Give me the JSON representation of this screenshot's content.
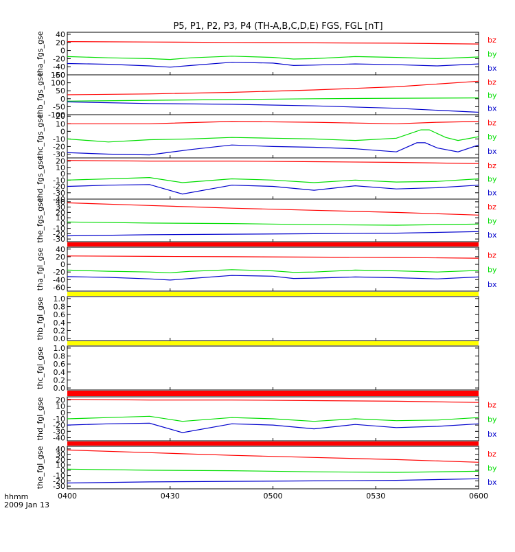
{
  "chart_data": {
    "type": "line",
    "title": "P5, P1, P2, P3, P4 (TH-A,B,C,D,E) FGS, FGL [nT]",
    "x_ticks": [
      "0400",
      "0430",
      "0500",
      "0530",
      "0600"
    ],
    "x_label_line1": "hhmm",
    "x_label_line2": "2009 Jan 13",
    "legend": {
      "bz": "bz",
      "by": "by",
      "bx": "bx"
    },
    "colors": {
      "bz": "#ff0000",
      "by": "#00dd00",
      "bx": "#0000cc",
      "bar_red": "#ff0000",
      "bar_yellow": "#ffff00"
    },
    "panels": [
      {
        "ylabel": "tha_fgs_gse",
        "ylim": [
          -60,
          45
        ],
        "yticks": [
          "40",
          "20",
          "0",
          "-20",
          "-40",
          "-60"
        ],
        "legend_shown": true,
        "series": [
          {
            "name": "bz",
            "t": [
              0,
              0.2,
              0.4,
              0.6,
              0.8,
              1
            ],
            "values": [
              22,
              21,
              20,
              19,
              18,
              16
            ]
          },
          {
            "name": "by",
            "t": [
              0,
              0.1,
              0.2,
              0.25,
              0.3,
              0.4,
              0.5,
              0.55,
              0.6,
              0.7,
              0.8,
              0.9,
              1
            ],
            "values": [
              -15,
              -18,
              -20,
              -22,
              -18,
              -14,
              -17,
              -21,
              -20,
              -15,
              -17,
              -20,
              -16
            ]
          },
          {
            "name": "bx",
            "t": [
              0,
              0.1,
              0.2,
              0.25,
              0.3,
              0.4,
              0.5,
              0.55,
              0.6,
              0.7,
              0.8,
              0.9,
              1
            ],
            "values": [
              -32,
              -34,
              -38,
              -41,
              -37,
              -29,
              -31,
              -37,
              -36,
              -33,
              -35,
              -38,
              -33
            ]
          }
        ]
      },
      {
        "ylabel": "thb_fgs_gse",
        "ylim": [
          -100,
          150
        ],
        "yticks": [
          "150",
          "100",
          "50",
          "0",
          "-50",
          "-100"
        ],
        "legend_shown": true,
        "series": [
          {
            "name": "bz",
            "t": [
              0,
              0.2,
              0.4,
              0.6,
              0.8,
              1
            ],
            "values": [
              25,
              30,
              40,
              55,
              75,
              110
            ]
          },
          {
            "name": "by",
            "t": [
              0,
              0.2,
              0.4,
              0.6,
              0.8,
              1
            ],
            "values": [
              -15,
              -10,
              -5,
              0,
              3,
              5
            ]
          },
          {
            "name": "bx",
            "t": [
              0,
              0.2,
              0.4,
              0.6,
              0.8,
              1
            ],
            "values": [
              -20,
              -30,
              -35,
              -45,
              -60,
              -85
            ]
          }
        ]
      },
      {
        "ylabel": "thc_fgs_gse",
        "ylim": [
          -35,
          22
        ],
        "yticks": [
          "20",
          "10",
          "0",
          "-10",
          "-20",
          "-30"
        ],
        "legend_shown": true,
        "series": [
          {
            "name": "bz",
            "t": [
              0,
              0.2,
              0.4,
              0.6,
              0.7,
              0.8,
              0.9,
              1
            ],
            "values": [
              10,
              10,
              13,
              12,
              11,
              10,
              12,
              13
            ]
          },
          {
            "name": "by",
            "t": [
              0,
              0.1,
              0.2,
              0.3,
              0.4,
              0.5,
              0.6,
              0.7,
              0.8,
              0.86,
              0.88,
              0.92,
              0.95,
              1
            ],
            "values": [
              -10,
              -14,
              -11,
              -10,
              -8,
              -9,
              -10,
              -12,
              -9,
              2,
              2,
              -8,
              -12,
              -7
            ]
          },
          {
            "name": "bx",
            "t": [
              0,
              0.1,
              0.2,
              0.3,
              0.4,
              0.5,
              0.6,
              0.7,
              0.8,
              0.85,
              0.87,
              0.9,
              0.95,
              1
            ],
            "values": [
              -28,
              -30,
              -31,
              -24,
              -18,
              -20,
              -21,
              -23,
              -27,
              -15,
              -15,
              -22,
              -27,
              -18
            ]
          }
        ]
      },
      {
        "ylabel": "thd_fgs_gse",
        "ylim": [
          -40,
          25
        ],
        "yticks": [
          "20",
          "10",
          "0",
          "-10",
          "-20",
          "-30",
          "-40"
        ],
        "legend_shown": true,
        "series": [
          {
            "name": "bz",
            "t": [
              0,
              0.2,
              0.4,
              0.6,
              0.8,
              1
            ],
            "values": [
              21,
              20,
              20,
              19,
              18,
              16
            ]
          },
          {
            "name": "by",
            "t": [
              0,
              0.1,
              0.2,
              0.28,
              0.4,
              0.5,
              0.6,
              0.7,
              0.8,
              0.9,
              1
            ],
            "values": [
              -10,
              -8,
              -6,
              -14,
              -8,
              -10,
              -14,
              -10,
              -13,
              -12,
              -8
            ]
          },
          {
            "name": "bx",
            "t": [
              0,
              0.1,
              0.2,
              0.28,
              0.4,
              0.5,
              0.6,
              0.7,
              0.8,
              0.9,
              1
            ],
            "values": [
              -20,
              -18,
              -17,
              -32,
              -18,
              -20,
              -26,
              -19,
              -24,
              -22,
              -18
            ]
          }
        ]
      },
      {
        "ylabel": "the_fgs_gse",
        "ylim": [
          -35,
          45
        ],
        "yticks": [
          "40",
          "30",
          "20",
          "10",
          "0",
          "-10",
          "-20",
          "-30"
        ],
        "legend_shown": true,
        "series": [
          {
            "name": "bz",
            "t": [
              0,
              0.2,
              0.4,
              0.6,
              0.8,
              1
            ],
            "values": [
              38,
              33,
              28,
              24,
              20,
              15
            ]
          },
          {
            "name": "by",
            "t": [
              0,
              0.2,
              0.4,
              0.6,
              0.8,
              1
            ],
            "values": [
              2,
              0,
              -1,
              -3,
              -4,
              -2
            ]
          },
          {
            "name": "bx",
            "t": [
              0,
              0.2,
              0.4,
              0.6,
              0.8,
              1
            ],
            "values": [
              -24,
              -22,
              -21,
              -20,
              -19,
              -16
            ]
          }
        ]
      },
      {
        "ylabel": "tha_fgl_gse",
        "ylim": [
          -70,
          45
        ],
        "yticks": [
          "40",
          "20",
          "0",
          "-20",
          "-40",
          "-60"
        ],
        "legend_shown": true,
        "series": [
          {
            "name": "bz",
            "t": [
              0,
              0.2,
              0.4,
              0.6,
              0.8,
              1
            ],
            "values": [
              22,
              21,
              20,
              19,
              18,
              16
            ]
          },
          {
            "name": "by",
            "t": [
              0,
              0.1,
              0.2,
              0.25,
              0.3,
              0.4,
              0.5,
              0.55,
              0.6,
              0.7,
              0.8,
              0.9,
              1
            ],
            "values": [
              -15,
              -18,
              -20,
              -22,
              -18,
              -14,
              -17,
              -21,
              -20,
              -15,
              -17,
              -20,
              -16
            ]
          },
          {
            "name": "bx",
            "t": [
              0,
              0.1,
              0.2,
              0.25,
              0.3,
              0.4,
              0.5,
              0.55,
              0.6,
              0.7,
              0.8,
              0.9,
              1
            ],
            "values": [
              -32,
              -34,
              -38,
              -41,
              -37,
              -29,
              -31,
              -37,
              -36,
              -33,
              -35,
              -38,
              -33
            ]
          }
        ]
      },
      {
        "ylabel": "thb_fgl_gse",
        "ylim": [
          -0.05,
          1.05
        ],
        "yticks": [
          "1.0",
          "0.8",
          "0.6",
          "0.4",
          "0.2",
          "0.0"
        ],
        "legend_shown": false,
        "series": []
      },
      {
        "ylabel": "thc_fgl_gse",
        "ylim": [
          -0.05,
          1.05
        ],
        "yticks": [
          "1.0",
          "0.8",
          "0.6",
          "0.4",
          "0.2",
          "0.0"
        ],
        "legend_shown": false,
        "series": []
      },
      {
        "ylabel": "thd_fgl_gse",
        "ylim": [
          -45,
          25
        ],
        "yticks": [
          "20",
          "10",
          "0",
          "-10",
          "-20",
          "-30",
          "-40"
        ],
        "legend_shown": true,
        "series": [
          {
            "name": "bz",
            "t": [
              0,
              0.2,
              0.4,
              0.6,
              0.8,
              1
            ],
            "values": [
              21,
              20,
              20,
              19,
              18,
              16
            ]
          },
          {
            "name": "by",
            "t": [
              0,
              0.1,
              0.2,
              0.28,
              0.4,
              0.5,
              0.6,
              0.7,
              0.8,
              0.9,
              1
            ],
            "values": [
              -10,
              -8,
              -6,
              -14,
              -8,
              -10,
              -14,
              -10,
              -13,
              -12,
              -8
            ]
          },
          {
            "name": "bx",
            "t": [
              0,
              0.1,
              0.2,
              0.28,
              0.4,
              0.5,
              0.6,
              0.7,
              0.8,
              0.9,
              1
            ],
            "values": [
              -20,
              -18,
              -17,
              -32,
              -18,
              -20,
              -26,
              -19,
              -24,
              -22,
              -18
            ]
          }
        ]
      },
      {
        "ylabel": "the_fgl_gse",
        "ylim": [
          -35,
          45
        ],
        "yticks": [
          "40",
          "30",
          "20",
          "10",
          "0",
          "-10",
          "-20",
          "-30"
        ],
        "legend_shown": true,
        "series": [
          {
            "name": "bz",
            "t": [
              0,
              0.2,
              0.4,
              0.6,
              0.8,
              1
            ],
            "values": [
              38,
              33,
              28,
              24,
              20,
              15
            ]
          },
          {
            "name": "by",
            "t": [
              0,
              0.2,
              0.4,
              0.6,
              0.8,
              1
            ],
            "values": [
              2,
              0,
              -1,
              -3,
              -4,
              -2
            ]
          },
          {
            "name": "bx",
            "t": [
              0,
              0.2,
              0.4,
              0.6,
              0.8,
              1
            ],
            "values": [
              -24,
              -22,
              -21,
              -20,
              -19,
              -16
            ]
          }
        ]
      }
    ],
    "status_bars": [
      {
        "after_panel": 4,
        "color": "bar_red"
      },
      {
        "after_panel": 5,
        "color": "bar_yellow"
      },
      {
        "after_panel": 6,
        "color": "bar_yellow"
      },
      {
        "after_panel": 7,
        "color": "bar_red"
      },
      {
        "after_panel": 8,
        "color": "bar_red"
      }
    ]
  }
}
